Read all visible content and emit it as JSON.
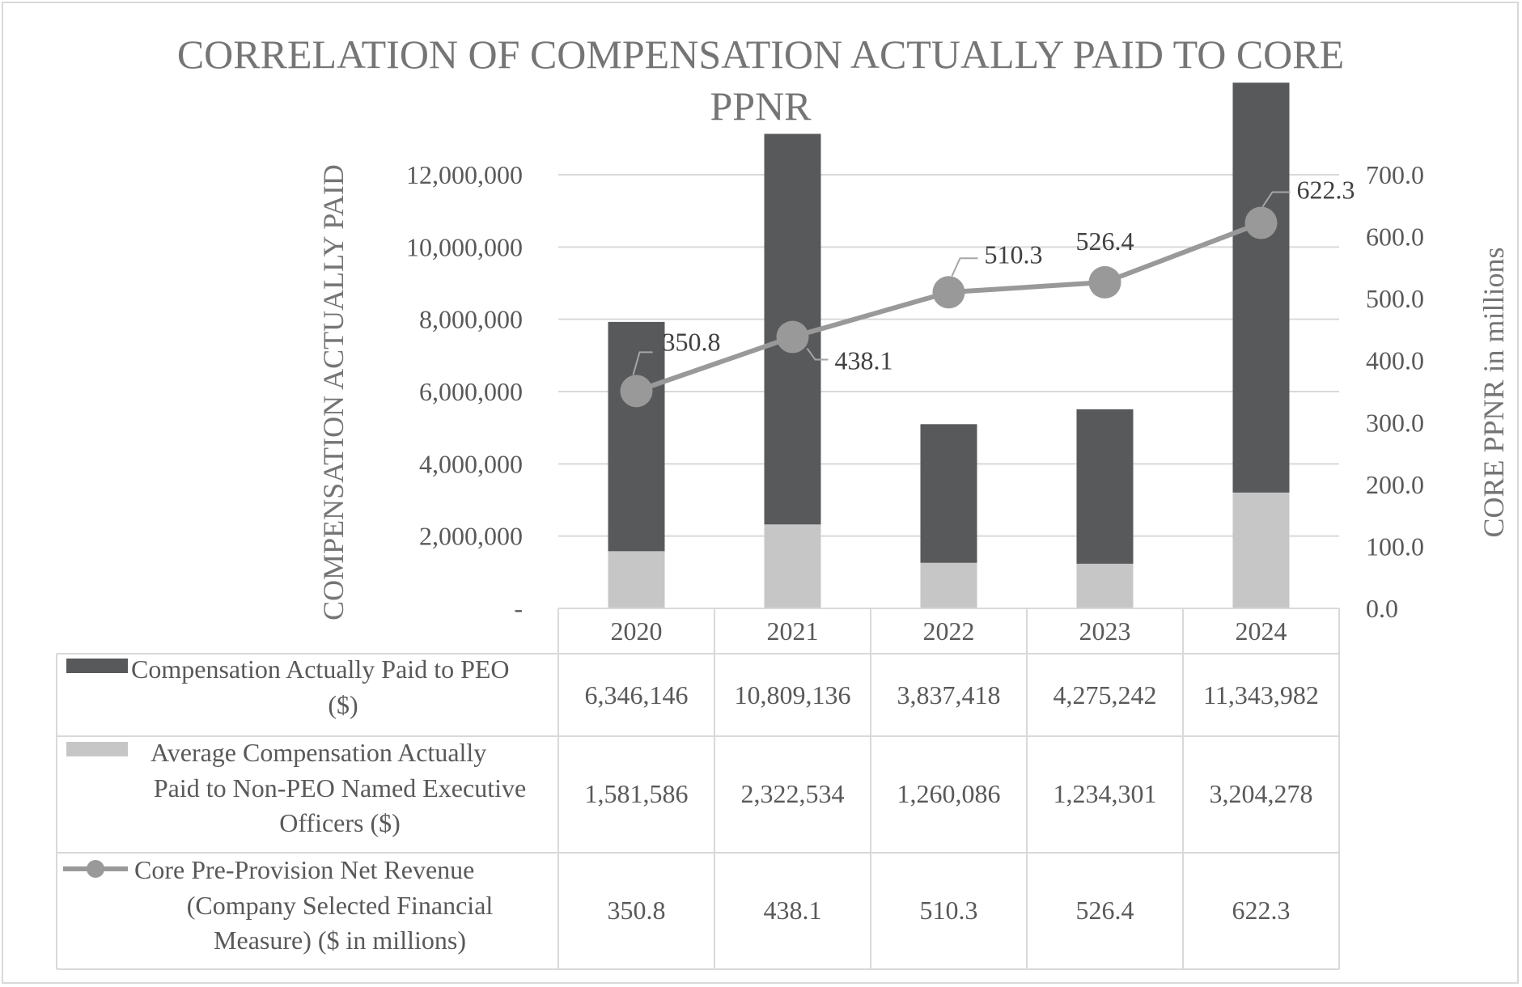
{
  "chart_data": {
    "type": "bar",
    "title_lines": [
      "CORRELATION OF COMPENSATION ACTUALLY PAID TO CORE",
      "PPNR"
    ],
    "categories": [
      "2020",
      "2021",
      "2022",
      "2023",
      "2024"
    ],
    "ylabel": "COMPENSATION ACTUALLY PAID",
    "y2label": "CORE PPNR in millions",
    "ylim": [
      0,
      12000000
    ],
    "y2lim": [
      0,
      700
    ],
    "yticks": [
      0,
      2000000,
      4000000,
      6000000,
      8000000,
      10000000,
      12000000
    ],
    "ytick_labels": [
      "-",
      "2,000,000",
      "4,000,000",
      "6,000,000",
      "8,000,000",
      "10,000,000",
      "12,000,000"
    ],
    "y2ticks": [
      0,
      100,
      200,
      300,
      400,
      500,
      600,
      700
    ],
    "y2tick_labels": [
      "0.0",
      "100.0",
      "200.0",
      "300.0",
      "400.0",
      "500.0",
      "600.0",
      "700.0"
    ],
    "grid": true,
    "series": [
      {
        "name": "Compensation Actually Paid to PEO ($)",
        "label_lines": [
          "Compensation Actually Paid to PEO",
          "($)"
        ],
        "kind": "bar",
        "color": "#58595b",
        "values": [
          6346146,
          10809136,
          3837418,
          4275242,
          11343982
        ],
        "display": [
          "6,346,146",
          "10,809,136",
          "3,837,418",
          "4,275,242",
          "11,343,982"
        ]
      },
      {
        "name": "Average Compensation Actually Paid to Non-PEO Named Executive Officers ($)",
        "label_lines": [
          "Average Compensation Actually",
          "Paid to Non-PEO Named Executive",
          "Officers ($)"
        ],
        "kind": "bar",
        "color": "#c6c6c7",
        "values": [
          1581586,
          2322534,
          1260086,
          1234301,
          3204278
        ],
        "display": [
          "1,581,586",
          "2,322,534",
          "1,260,086",
          "1,234,301",
          "3,204,278"
        ]
      },
      {
        "name": "Core Pre-Provision Net Revenue (Company Selected Financial Measure) ($ in millions)",
        "label_lines": [
          "Core Pre-Provision Net Revenue",
          "(Company Selected Financial",
          "Measure) ($ in millions)"
        ],
        "kind": "line",
        "axis": "secondary",
        "color": "#999999",
        "values": [
          350.8,
          438.1,
          510.3,
          526.4,
          622.3
        ],
        "display": [
          "350.8",
          "438.1",
          "510.3",
          "526.4",
          "622.3"
        ]
      }
    ]
  }
}
